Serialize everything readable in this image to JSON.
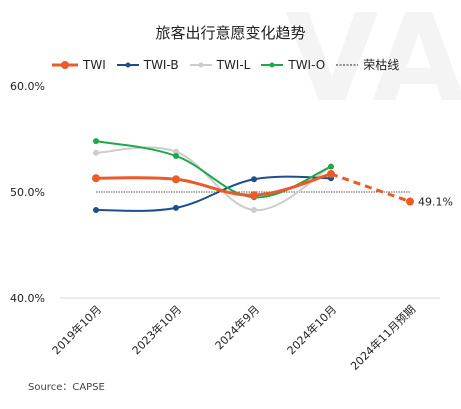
{
  "title": "旅客出行意愿变化趋势",
  "watermark": "VA",
  "source": "Source：CAPSE",
  "chart_data": {
    "type": "line",
    "categories": [
      "2019年10月",
      "2023年10月",
      "2024年9月",
      "2024年10月",
      "2024年11月预期"
    ],
    "ylim": [
      40,
      60
    ],
    "yticks": [
      "40.0%",
      "50.0%",
      "60.0%"
    ],
    "grid": false,
    "legend_position": "top",
    "series": [
      {
        "name": "TWI",
        "color": "#ec5a2a",
        "values": [
          51.3,
          51.2,
          49.7,
          51.7,
          null
        ],
        "forecast": [
          null,
          null,
          null,
          51.7,
          49.1
        ],
        "endLabel": "49.1%"
      },
      {
        "name": "TWI-B",
        "color": "#1f4e8c",
        "values": [
          48.3,
          48.5,
          51.2,
          51.3,
          null
        ]
      },
      {
        "name": "TWI-L",
        "color": "#cccccc",
        "values": [
          53.7,
          53.8,
          48.3,
          52.4,
          null
        ]
      },
      {
        "name": "TWI-O",
        "color": "#1fa84a",
        "values": [
          54.8,
          53.4,
          49.5,
          52.4,
          null
        ]
      }
    ],
    "reference_line": {
      "name": "荣枯线",
      "value": 50
    }
  }
}
